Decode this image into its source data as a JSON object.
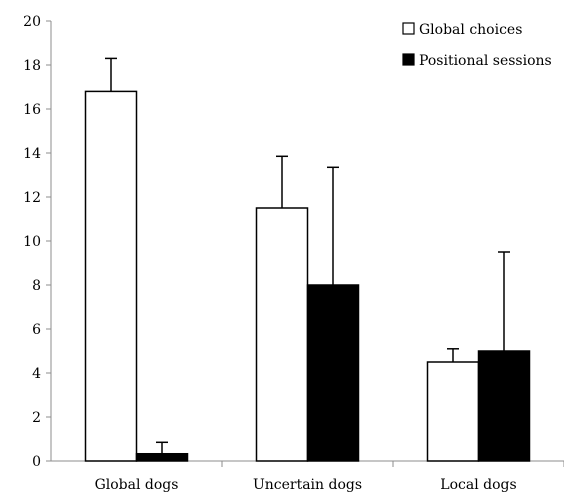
{
  "chart_data": {
    "type": "bar",
    "title": "",
    "xlabel": "",
    "ylabel": "",
    "categories": [
      "Global dogs",
      "Uncertain dogs",
      "Local dogs"
    ],
    "ylim": [
      0,
      20
    ],
    "yticks": [
      0,
      2,
      4,
      6,
      8,
      10,
      12,
      14,
      16,
      18,
      20
    ],
    "grid": false,
    "legend_position": "top-right",
    "series": [
      {
        "name": "Global choices",
        "color": "#ffffff",
        "values": [
          16.8,
          11.5,
          4.5
        ],
        "error_upper": [
          18.3,
          13.85,
          5.1
        ]
      },
      {
        "name": "Positional sessions",
        "color": "#000000",
        "values": [
          0.33,
          8.0,
          5.0
        ],
        "error_upper": [
          0.85,
          13.35,
          9.5
        ]
      }
    ]
  }
}
